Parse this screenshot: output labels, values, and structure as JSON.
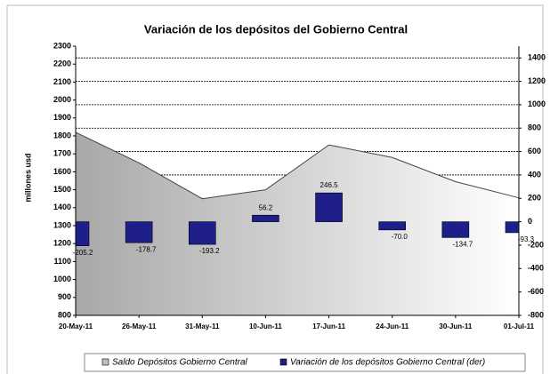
{
  "chart_data": {
    "type": "combo",
    "title": "Variación de los depósitos del Gobierno Central",
    "y_label": "millones usd",
    "categories": [
      "20-May-11",
      "26-May-11",
      "31-May-11",
      "10-Jun-11",
      "17-Jun-11",
      "24-Jun-11",
      "30-Jun-11",
      "01-Jul-11"
    ],
    "series": [
      {
        "name": "Saldo Depósitos Gobierno Central",
        "type": "area",
        "color": "#b0b0b0",
        "values": [
          1820,
          1650,
          1450,
          1500,
          1750,
          1680,
          1545,
          1455
        ]
      },
      {
        "name": "Variación de los depósitos Gobierno Central (der)",
        "type": "bar",
        "axis": "y2",
        "color": "#1f1f8c",
        "values": [
          -205.2,
          -178.7,
          -193.2,
          56.2,
          246.5,
          -70.0,
          -134.7,
          -93.3
        ],
        "value_labels": [
          "-205.2",
          "-178.7",
          "-193.2",
          "56.2",
          "246.5",
          "-70.0",
          "-134.7",
          "-93.3"
        ]
      }
    ],
    "ylim": [
      800,
      2300
    ],
    "yticks": [
      800,
      900,
      1000,
      1100,
      1200,
      1300,
      1400,
      1500,
      1600,
      1700,
      1800,
      1900,
      2000,
      2100,
      2200,
      2300
    ],
    "y2lim": [
      -800,
      1500
    ],
    "y2ticks": [
      -800,
      -600,
      -400,
      -200,
      0,
      200,
      400,
      600,
      800,
      1000,
      1200,
      1400
    ],
    "grid": true,
    "legend": "bottom"
  }
}
